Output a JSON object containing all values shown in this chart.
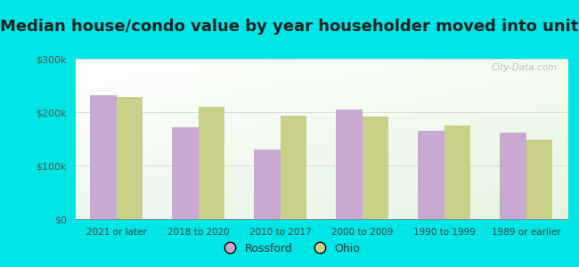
{
  "title": "Median house/condo value by year householder moved into unit",
  "categories": [
    "2021 or later",
    "2018 to 2020",
    "2010 to 2017",
    "2000 to 2009",
    "1990 to 1999",
    "1989 or earlier"
  ],
  "rossford_values": [
    232000,
    172000,
    130000,
    205000,
    165000,
    162000
  ],
  "ohio_values": [
    228000,
    210000,
    193000,
    192000,
    175000,
    148000
  ],
  "rossford_color": "#c9a8d4",
  "ohio_color": "#c8d08a",
  "background_color": "#00e5e5",
  "ylim": [
    0,
    300000
  ],
  "yticks": [
    0,
    100000,
    200000,
    300000
  ],
  "ytick_labels": [
    "$0",
    "$100k",
    "$200k",
    "$300k"
  ],
  "bar_width": 0.32,
  "title_fontsize": 13,
  "watermark_text": "City-Data.com"
}
